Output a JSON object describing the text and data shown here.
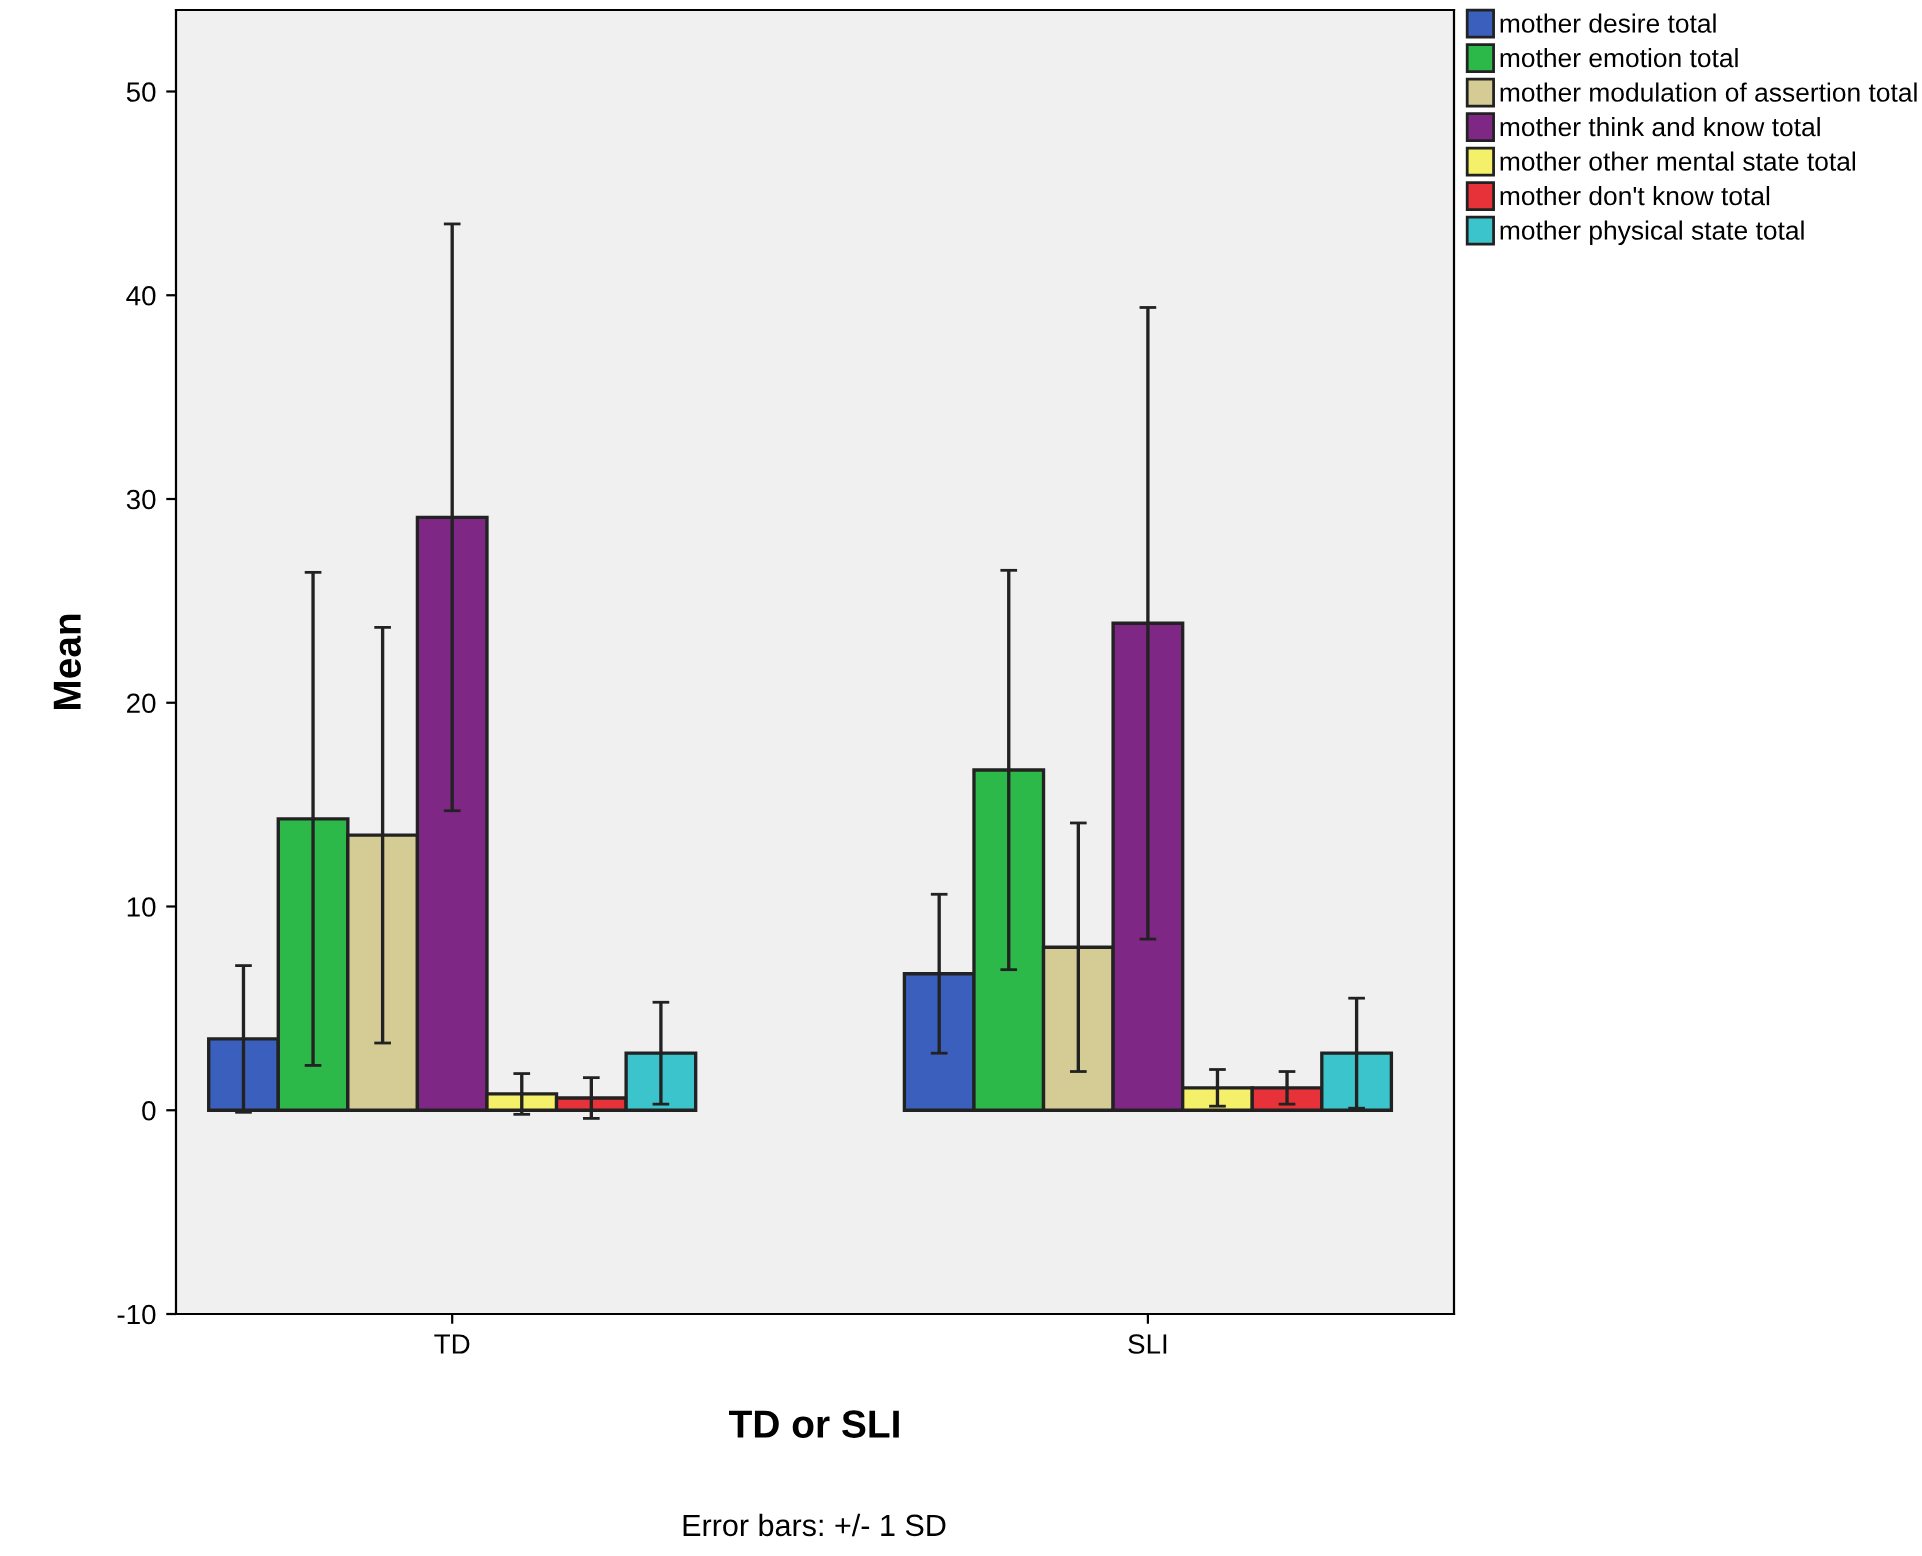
{
  "chart_data": {
    "type": "bar",
    "xlabel": "TD or SLI",
    "ylabel": "Mean",
    "categories": [
      "TD",
      "SLI"
    ],
    "series": [
      {
        "name": "mother desire total",
        "color": "#3a5fbd",
        "values": [
          3.5,
          6.7
        ],
        "errors": [
          3.6,
          3.9
        ]
      },
      {
        "name": "mother emotion total",
        "color": "#2db84a",
        "values": [
          14.3,
          16.7
        ],
        "errors": [
          12.1,
          9.8
        ]
      },
      {
        "name": "mother modulation of assertion total",
        "color": "#d4cc94",
        "values": [
          13.5,
          8.0
        ],
        "errors": [
          10.2,
          6.1
        ]
      },
      {
        "name": "mother think and know total",
        "color": "#7f2784",
        "values": [
          29.1,
          23.9
        ],
        "errors": [
          14.4,
          15.5
        ]
      },
      {
        "name": "mother other mental state total",
        "color": "#f5f06a",
        "values": [
          0.8,
          1.1
        ],
        "errors": [
          1.0,
          0.9
        ]
      },
      {
        "name": "mother don't know total",
        "color": "#e8323a",
        "values": [
          0.6,
          1.1
        ],
        "errors": [
          1.0,
          0.8
        ]
      },
      {
        "name": "mother physical state total",
        "color": "#3cc4cc",
        "values": [
          2.8,
          2.8
        ],
        "errors": [
          2.5,
          2.7
        ]
      }
    ],
    "ylim": [
      -10,
      54
    ],
    "yticks": [
      -10,
      0,
      10,
      20,
      30,
      40,
      50
    ],
    "grid": false,
    "legend": "top right",
    "annotations": [
      "Error bars: +/- 1 SD"
    ]
  }
}
